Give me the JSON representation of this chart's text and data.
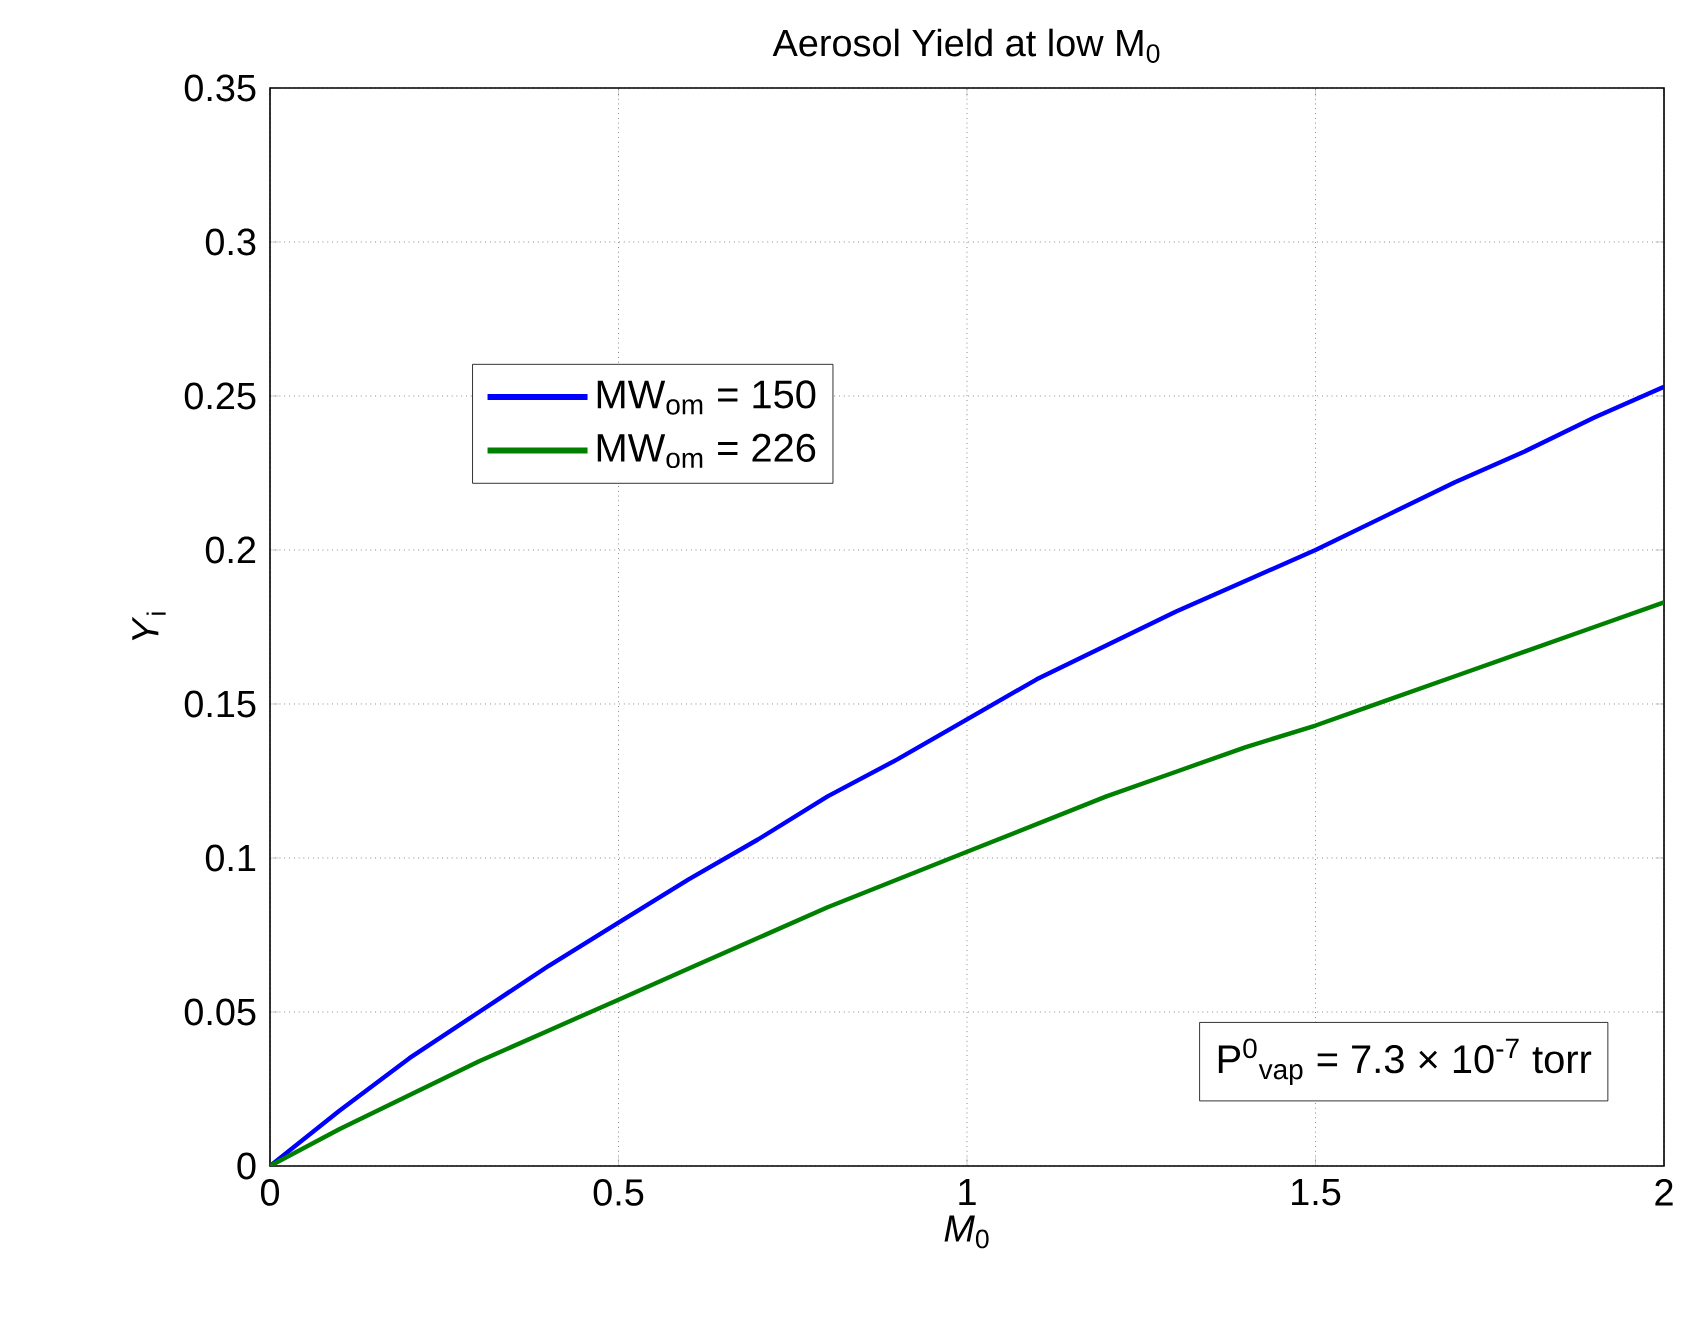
{
  "chart_data": {
    "type": "line",
    "title": "Aerosol Yield at low M$_{0}$",
    "xlabel": "*M*$_{0}$",
    "ylabel": "*Y*$_{i}$",
    "x": [
      0,
      0.1,
      0.2,
      0.3,
      0.4,
      0.5,
      0.6,
      0.7,
      0.8,
      0.9,
      1.0,
      1.1,
      1.2,
      1.3,
      1.4,
      1.5,
      1.6,
      1.7,
      1.8,
      1.9,
      2.0
    ],
    "series": [
      {
        "name": "MW$_{om}$ = 150",
        "color": "#0000ff",
        "values": [
          0,
          0.018,
          0.035,
          0.05,
          0.065,
          0.079,
          0.093,
          0.106,
          0.12,
          0.132,
          0.145,
          0.158,
          0.169,
          0.18,
          0.19,
          0.2,
          0.211,
          0.222,
          0.232,
          0.243,
          0.253
        ]
      },
      {
        "name": "MW$_{om}$ = 226",
        "color": "#008000",
        "values": [
          0,
          0.012,
          0.023,
          0.034,
          0.044,
          0.054,
          0.064,
          0.074,
          0.084,
          0.093,
          0.102,
          0.111,
          0.12,
          0.128,
          0.136,
          0.143,
          0.151,
          0.159,
          0.167,
          0.175,
          0.183
        ]
      }
    ],
    "annotations": [
      "P$^{0}$$_{vap}$ = 7.3 × 10$^{-7}$ torr"
    ],
    "xlim": [
      0,
      2
    ],
    "ylim": [
      0,
      0.35
    ],
    "xticks": [
      0,
      0.5,
      1,
      1.5,
      2
    ],
    "yticks": [
      0,
      0.05,
      0.1,
      0.15,
      0.2,
      0.25,
      0.3,
      0.35
    ],
    "grid": true,
    "legend": "top left",
    "line_style": "solid",
    "marker": "none"
  }
}
